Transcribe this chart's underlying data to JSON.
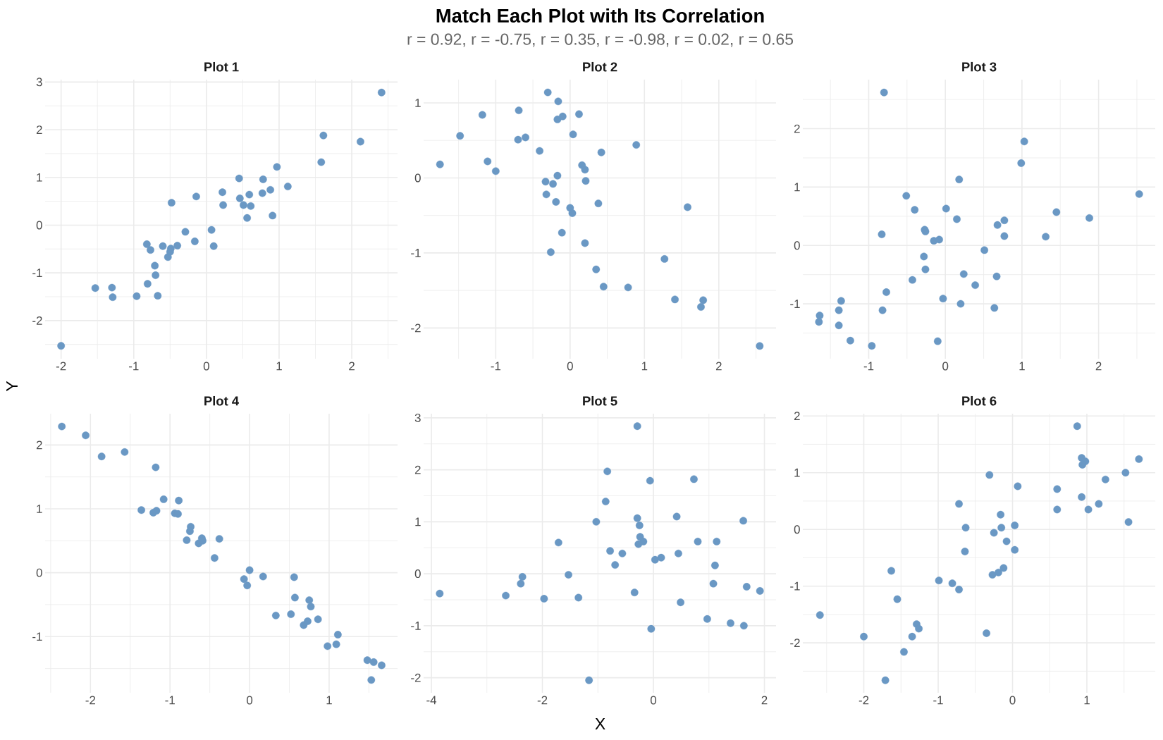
{
  "chart_data": [
    {
      "type": "other",
      "title": "Match Each Plot with Its Correlation",
      "subtitle": "r = 0.92, r = -0.75, r = 0.35, r = -0.98, r = 0.02, r = 0.65",
      "xlabel": "X",
      "ylabel": "Y"
    },
    {
      "type": "scatter",
      "title": "Plot 1",
      "color": "#6a98c4",
      "marker": "circle",
      "grid": true,
      "xlim": [
        -2.22,
        2.63
      ],
      "ylim": [
        -2.8,
        3.05
      ],
      "xticks": [
        -2,
        -1,
        0,
        1,
        2
      ],
      "yticks": [
        -2,
        -1,
        0,
        1,
        2,
        3
      ],
      "x": [
        -2.0,
        -1.53,
        -1.3,
        -1.29,
        -0.96,
        -0.67,
        -0.81,
        -0.7,
        -0.71,
        -0.82,
        -0.77,
        -0.6,
        -0.53,
        -0.49,
        -0.5,
        -0.4,
        -0.48,
        -0.29,
        -0.16,
        -0.14,
        0.07,
        0.1,
        0.22,
        0.23,
        0.45,
        0.46,
        0.51,
        0.59,
        0.61,
        0.56,
        0.78,
        0.77,
        0.88,
        0.91,
        0.97,
        1.12,
        1.58,
        1.61,
        2.12,
        2.41
      ],
      "values": [
        -2.53,
        -1.32,
        -1.31,
        -1.51,
        -1.49,
        -1.48,
        -1.23,
        -1.05,
        -0.85,
        -0.4,
        -0.52,
        -0.44,
        -0.67,
        -0.49,
        -0.56,
        -0.43,
        0.47,
        -0.14,
        -0.34,
        0.6,
        -0.1,
        -0.44,
        0.69,
        0.42,
        0.98,
        0.56,
        0.42,
        0.64,
        0.4,
        0.15,
        0.96,
        0.67,
        0.74,
        0.2,
        1.22,
        0.81,
        1.32,
        1.88,
        1.75,
        2.78
      ]
    },
    {
      "type": "scatter",
      "title": "Plot 2",
      "color": "#6a98c4",
      "marker": "circle",
      "grid": true,
      "xlim": [
        -1.97,
        2.77
      ],
      "ylim": [
        -2.41,
        1.31
      ],
      "xticks": [
        -1,
        0,
        1,
        2
      ],
      "yticks": [
        -2,
        -1,
        0,
        1
      ],
      "x": [
        -1.75,
        -1.48,
        -1.18,
        -1.11,
        -1.0,
        -0.69,
        -0.7,
        -0.6,
        -0.41,
        -0.3,
        -0.16,
        -0.17,
        -0.1,
        0.12,
        0.04,
        0.42,
        0.89,
        0.16,
        0.2,
        -0.17,
        -0.33,
        -0.23,
        0.21,
        -0.32,
        -0.19,
        0.0,
        0.03,
        0.38,
        1.58,
        -0.11,
        0.2,
        -0.26,
        1.27,
        0.35,
        0.45,
        0.78,
        1.41,
        1.79,
        1.76,
        2.55
      ],
      "values": [
        0.18,
        0.56,
        0.84,
        0.22,
        0.09,
        0.9,
        0.51,
        0.54,
        0.36,
        1.14,
        1.02,
        0.78,
        0.82,
        0.85,
        0.58,
        0.34,
        0.44,
        0.17,
        0.11,
        0.03,
        -0.05,
        -0.08,
        -0.04,
        -0.22,
        -0.32,
        -0.4,
        -0.47,
        -0.34,
        -0.39,
        -0.73,
        -0.87,
        -0.99,
        -1.08,
        -1.22,
        -1.45,
        -1.46,
        -1.62,
        -1.63,
        -1.72,
        -2.24
      ]
    },
    {
      "type": "scatter",
      "title": "Plot 3",
      "color": "#6a98c4",
      "marker": "circle",
      "grid": true,
      "xlim": [
        -1.86,
        2.74
      ],
      "ylim": [
        -1.94,
        2.84
      ],
      "xticks": [
        -1,
        0,
        1,
        2
      ],
      "yticks": [
        -1,
        0,
        1,
        2
      ],
      "x": [
        -0.8,
        1.03,
        0.99,
        0.18,
        2.53,
        -0.51,
        -0.4,
        0.01,
        0.15,
        1.45,
        1.88,
        0.77,
        0.68,
        -0.27,
        -0.26,
        -0.83,
        -0.15,
        -0.08,
        0.77,
        1.31,
        0.51,
        -0.28,
        -0.26,
        0.24,
        0.67,
        -0.43,
        0.39,
        -0.77,
        -1.36,
        -0.03,
        0.2,
        0.64,
        -1.39,
        -0.82,
        -1.64,
        -1.65,
        -1.39,
        -1.24,
        -0.96,
        -0.1
      ],
      "values": [
        2.62,
        1.78,
        1.41,
        1.13,
        0.88,
        0.85,
        0.61,
        0.63,
        0.45,
        0.57,
        0.47,
        0.43,
        0.35,
        0.27,
        0.24,
        0.19,
        0.08,
        0.1,
        0.16,
        0.15,
        -0.08,
        -0.19,
        -0.41,
        -0.49,
        -0.53,
        -0.59,
        -0.68,
        -0.8,
        -0.95,
        -0.91,
        -1.0,
        -1.07,
        -1.11,
        -1.11,
        -1.2,
        -1.31,
        -1.37,
        -1.63,
        -1.72,
        -1.64
      ]
    },
    {
      "type": "scatter",
      "title": "Plot 4",
      "color": "#6a98c4",
      "marker": "circle",
      "grid": true,
      "xlim": [
        -2.57,
        1.86
      ],
      "ylim": [
        -1.88,
        2.49
      ],
      "xticks": [
        -2,
        -1,
        0,
        1
      ],
      "yticks": [
        -1,
        0,
        1,
        2
      ],
      "x": [
        -2.36,
        -2.06,
        -1.86,
        -1.57,
        -1.18,
        -1.08,
        -0.89,
        -1.36,
        -1.21,
        -1.17,
        -0.94,
        -0.9,
        -0.74,
        -0.75,
        -0.79,
        -0.6,
        -0.64,
        -0.59,
        -0.38,
        -0.44,
        0.0,
        -0.07,
        -0.03,
        0.17,
        0.56,
        0.57,
        0.75,
        0.77,
        0.33,
        0.52,
        0.73,
        0.68,
        0.86,
        1.11,
        1.09,
        0.98,
        1.48,
        1.56,
        1.66,
        1.53
      ],
      "values": [
        2.29,
        2.15,
        1.82,
        1.89,
        1.65,
        1.15,
        1.13,
        0.98,
        0.94,
        0.97,
        0.93,
        0.92,
        0.72,
        0.65,
        0.51,
        0.54,
        0.46,
        0.5,
        0.53,
        0.23,
        0.04,
        -0.1,
        -0.2,
        -0.06,
        -0.07,
        -0.39,
        -0.43,
        -0.53,
        -0.67,
        -0.65,
        -0.76,
        -0.82,
        -0.73,
        -0.97,
        -1.12,
        -1.15,
        -1.37,
        -1.4,
        -1.45,
        -1.68
      ]
    },
    {
      "type": "scatter",
      "title": "Plot 5",
      "color": "#6a98c4",
      "marker": "circle",
      "grid": true,
      "xlim": [
        -4.14,
        2.21
      ],
      "ylim": [
        -2.29,
        3.08
      ],
      "xticks": [
        -4,
        -2,
        0,
        2
      ],
      "yticks": [
        -2,
        -1,
        0,
        1,
        2,
        3
      ],
      "x": [
        -3.85,
        -2.66,
        -2.39,
        -2.36,
        -1.97,
        -1.71,
        -1.53,
        -1.35,
        -1.16,
        -1.03,
        -0.86,
        -0.83,
        -0.78,
        -0.69,
        -0.56,
        -0.34,
        -0.29,
        -0.29,
        -0.25,
        -0.24,
        -0.18,
        -0.27,
        -0.06,
        -0.04,
        0.03,
        0.14,
        0.42,
        0.45,
        0.49,
        0.73,
        0.8,
        0.97,
        1.08,
        1.11,
        1.14,
        1.39,
        1.62,
        1.63,
        1.68,
        1.92
      ],
      "values": [
        -0.38,
        -0.42,
        -0.19,
        -0.06,
        -0.48,
        0.6,
        -0.02,
        -0.46,
        -2.05,
        1.0,
        1.39,
        1.97,
        0.44,
        0.17,
        0.39,
        -0.36,
        2.84,
        1.07,
        0.93,
        0.71,
        0.62,
        0.57,
        1.79,
        -1.06,
        0.27,
        0.31,
        1.1,
        0.39,
        -0.55,
        1.82,
        0.62,
        -0.87,
        -0.19,
        0.16,
        0.62,
        -0.95,
        1.02,
        -1.0,
        -0.25,
        -0.33
      ]
    },
    {
      "type": "scatter",
      "title": "Plot 6",
      "color": "#6a98c4",
      "marker": "circle",
      "grid": true,
      "xlim": [
        -2.82,
        1.92
      ],
      "ylim": [
        -2.88,
        2.04
      ],
      "xticks": [
        -2,
        -1,
        0,
        1
      ],
      "yticks": [
        -2,
        -1,
        0,
        1,
        2
      ],
      "x": [
        -2.59,
        -2.0,
        -1.71,
        -1.63,
        -1.55,
        -1.46,
        -1.35,
        -1.29,
        -1.26,
        -0.99,
        -0.81,
        -0.72,
        -0.72,
        -0.63,
        -0.64,
        -0.35,
        -0.31,
        -0.27,
        -0.25,
        -0.19,
        -0.12,
        -0.16,
        -0.15,
        -0.08,
        0.03,
        0.03,
        0.07,
        0.6,
        0.6,
        0.87,
        0.93,
        0.98,
        0.94,
        0.93,
        1.02,
        1.16,
        1.25,
        1.52,
        1.56,
        1.7
      ],
      "values": [
        -1.51,
        -1.89,
        -2.66,
        -0.73,
        -1.23,
        -2.16,
        -1.89,
        -1.67,
        -1.75,
        -0.9,
        -0.95,
        -1.06,
        0.45,
        0.03,
        -0.39,
        -1.83,
        0.96,
        -0.8,
        -0.06,
        -0.76,
        -0.68,
        0.26,
        0.03,
        -0.21,
        0.07,
        -0.36,
        0.76,
        0.71,
        0.35,
        1.82,
        1.26,
        1.2,
        1.14,
        0.57,
        0.35,
        0.45,
        0.88,
        1.0,
        0.13,
        1.24
      ]
    }
  ]
}
